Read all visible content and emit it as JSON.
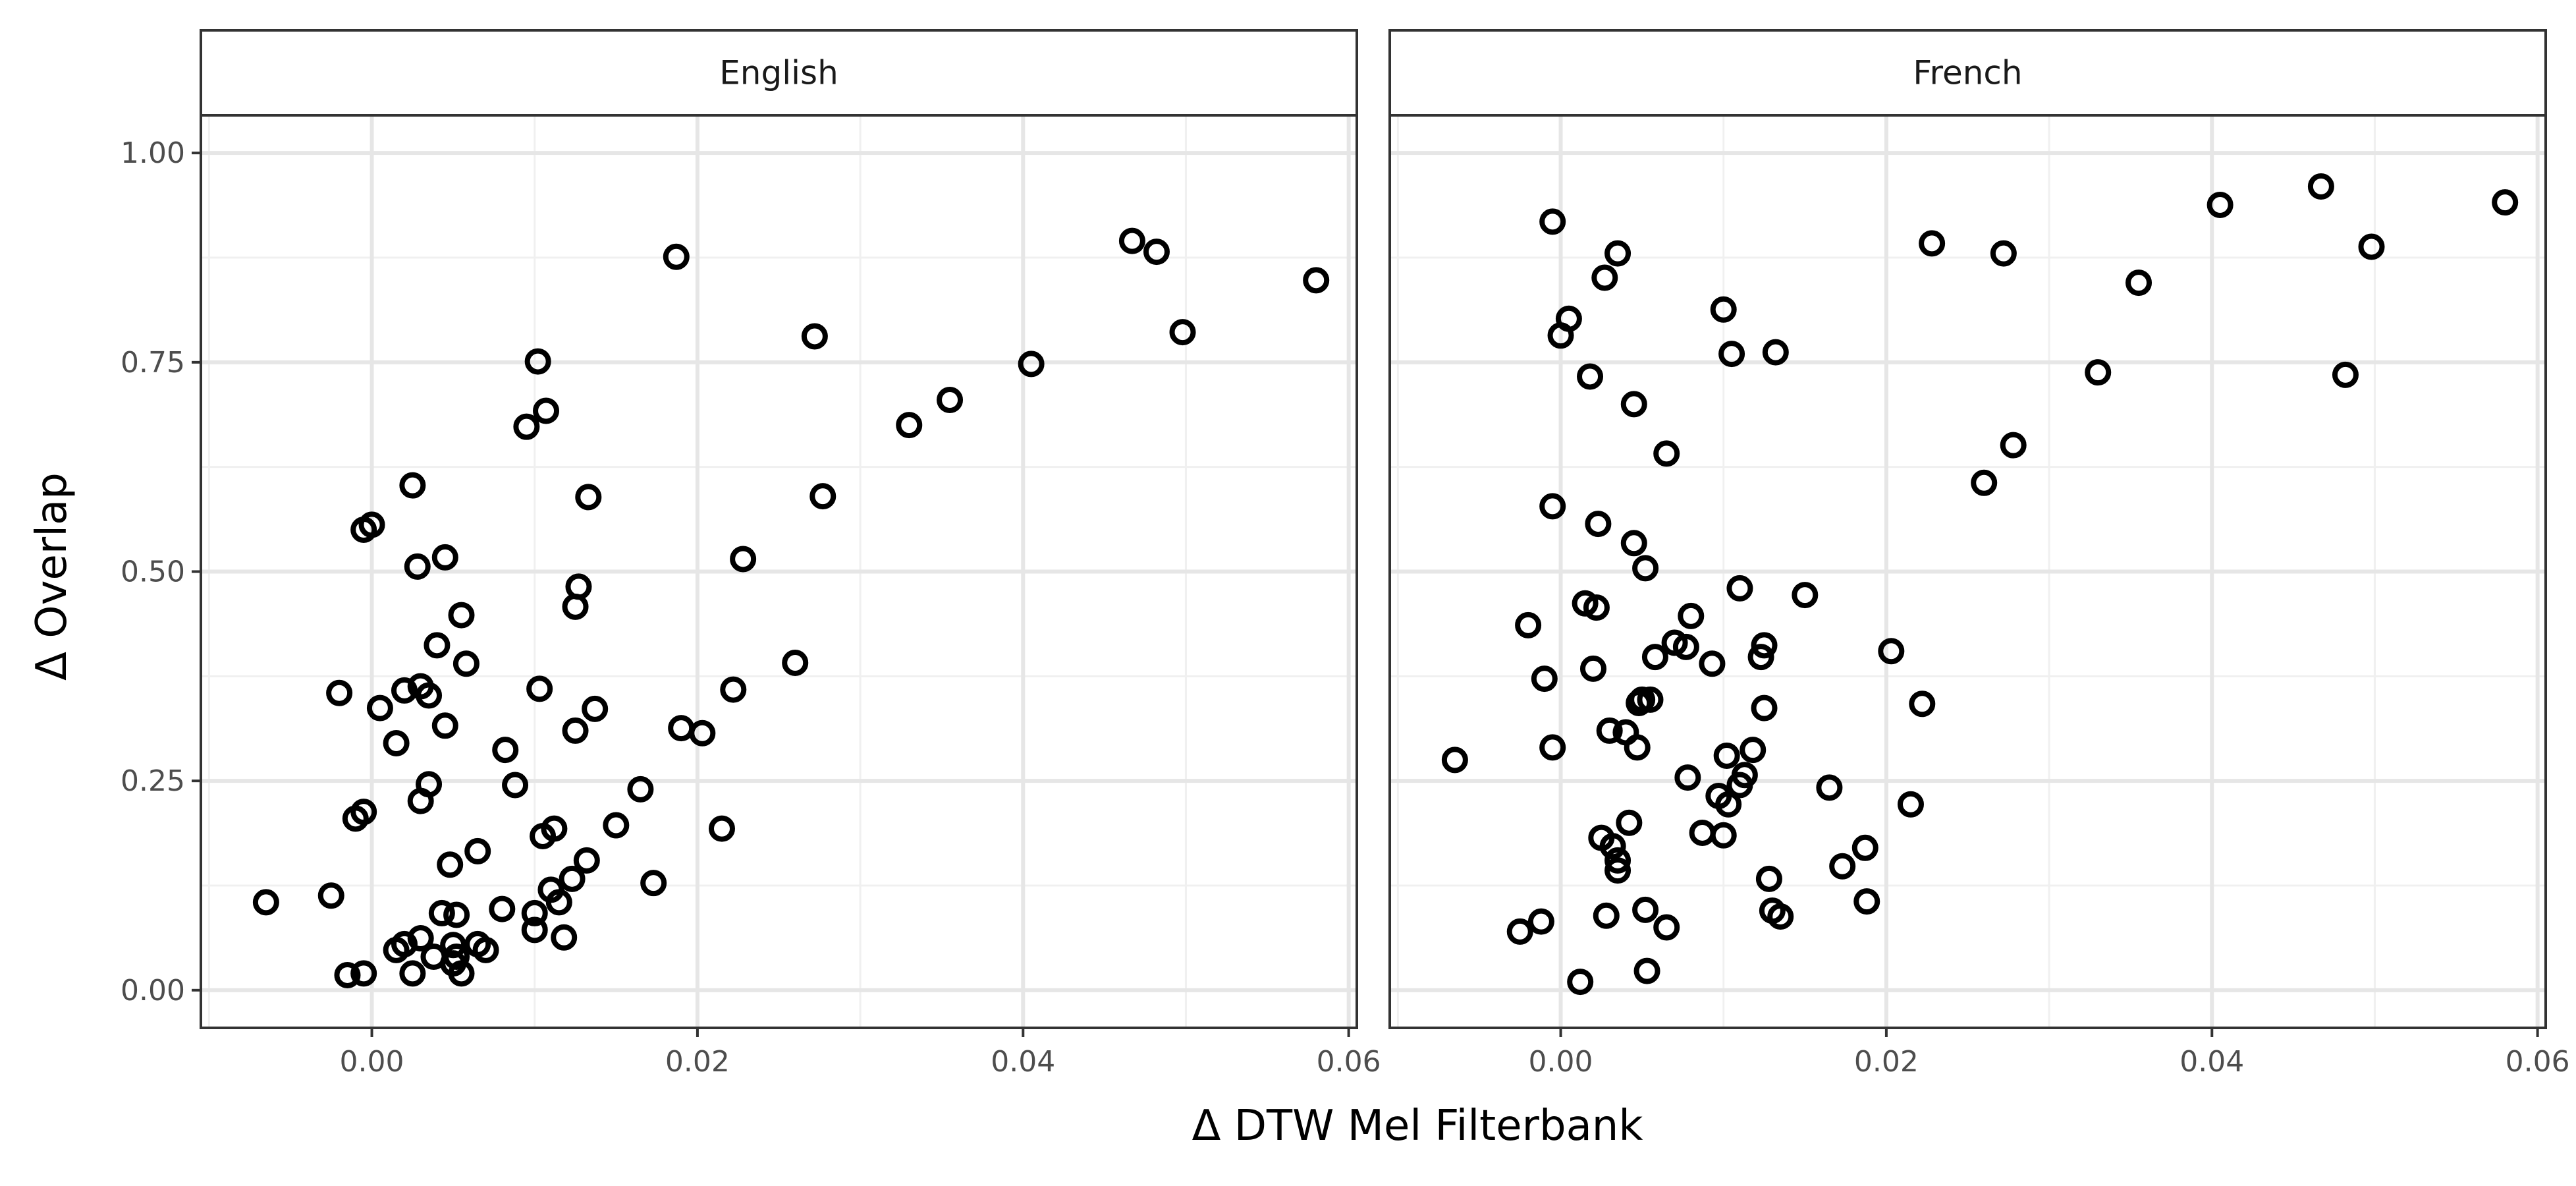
{
  "chart_data": {
    "type": "scatter",
    "xlabel": "Δ DTW Mel Filterbank",
    "ylabel": "Δ Overlap",
    "xlim": [
      -0.0105,
      0.0605
    ],
    "ylim": [
      -0.045,
      1.045
    ],
    "x_ticks": [
      0.0,
      0.02,
      0.04,
      0.06
    ],
    "x_tick_labels": [
      "0.00",
      "0.02",
      "0.04",
      "0.06"
    ],
    "y_ticks": [
      0.0,
      0.25,
      0.5,
      0.75,
      1.0
    ],
    "y_tick_labels": [
      "0.00",
      "0.25",
      "0.50",
      "0.75",
      "1.00"
    ],
    "grid": true,
    "legend": "none",
    "facets": [
      {
        "label": "English",
        "points": [
          [
            -0.0065,
            0.105
          ],
          [
            -0.0025,
            0.113
          ],
          [
            -0.0015,
            0.018
          ],
          [
            -0.0005,
            0.02
          ],
          [
            -0.002,
            0.355
          ],
          [
            -0.001,
            0.205
          ],
          [
            -0.0005,
            0.213
          ],
          [
            -0.0005,
            0.55
          ],
          [
            0.0,
            0.556
          ],
          [
            0.0005,
            0.337
          ],
          [
            0.0015,
            0.048
          ],
          [
            0.0015,
            0.295
          ],
          [
            0.002,
            0.358
          ],
          [
            0.002,
            0.055
          ],
          [
            0.0025,
            0.02
          ],
          [
            0.0025,
            0.603
          ],
          [
            0.0028,
            0.506
          ],
          [
            0.003,
            0.062
          ],
          [
            0.003,
            0.226
          ],
          [
            0.003,
            0.363
          ],
          [
            0.0035,
            0.352
          ],
          [
            0.0035,
            0.246
          ],
          [
            0.0038,
            0.04
          ],
          [
            0.004,
            0.412
          ],
          [
            0.0043,
            0.092
          ],
          [
            0.0045,
            0.316
          ],
          [
            0.0045,
            0.517
          ],
          [
            0.0048,
            0.15
          ],
          [
            0.005,
            0.054
          ],
          [
            0.005,
            0.032
          ],
          [
            0.0052,
            0.04
          ],
          [
            0.0052,
            0.09
          ],
          [
            0.0055,
            0.02
          ],
          [
            0.0055,
            0.448
          ],
          [
            0.0058,
            0.39
          ],
          [
            0.0065,
            0.166
          ],
          [
            0.0065,
            0.055
          ],
          [
            0.007,
            0.048
          ],
          [
            0.008,
            0.097
          ],
          [
            0.0082,
            0.287
          ],
          [
            0.0088,
            0.245
          ],
          [
            0.0095,
            0.673
          ],
          [
            0.01,
            0.072
          ],
          [
            0.01,
            0.092
          ],
          [
            0.0102,
            0.751
          ],
          [
            0.0103,
            0.36
          ],
          [
            0.0105,
            0.184
          ],
          [
            0.0107,
            0.692
          ],
          [
            0.011,
            0.12
          ],
          [
            0.0112,
            0.193
          ],
          [
            0.0115,
            0.105
          ],
          [
            0.0118,
            0.063
          ],
          [
            0.0123,
            0.133
          ],
          [
            0.0125,
            0.31
          ],
          [
            0.0125,
            0.458
          ],
          [
            0.0127,
            0.482
          ],
          [
            0.0132,
            0.155
          ],
          [
            0.0133,
            0.589
          ],
          [
            0.0137,
            0.336
          ],
          [
            0.015,
            0.197
          ],
          [
            0.0165,
            0.24
          ],
          [
            0.0173,
            0.128
          ],
          [
            0.0187,
            0.876
          ],
          [
            0.019,
            0.313
          ],
          [
            0.0203,
            0.307
          ],
          [
            0.0215,
            0.193
          ],
          [
            0.0222,
            0.359
          ],
          [
            0.0228,
            0.515
          ],
          [
            0.026,
            0.391
          ],
          [
            0.0272,
            0.781
          ],
          [
            0.0277,
            0.59
          ],
          [
            0.033,
            0.675
          ],
          [
            0.0355,
            0.705
          ],
          [
            0.0405,
            0.748
          ],
          [
            0.0467,
            0.895
          ],
          [
            0.0482,
            0.882
          ],
          [
            0.0498,
            0.786
          ],
          [
            0.058,
            0.848
          ]
        ]
      },
      {
        "label": "French",
        "points": [
          [
            -0.0065,
            0.275
          ],
          [
            -0.0025,
            0.07
          ],
          [
            -0.002,
            0.436
          ],
          [
            -0.0012,
            0.082
          ],
          [
            -0.001,
            0.372
          ],
          [
            -0.0005,
            0.29
          ],
          [
            -0.0005,
            0.578
          ],
          [
            -0.0005,
            0.918
          ],
          [
            0.0,
            0.782
          ],
          [
            0.0005,
            0.802
          ],
          [
            0.0012,
            0.01
          ],
          [
            0.0015,
            0.462
          ],
          [
            0.0018,
            0.733
          ],
          [
            0.002,
            0.384
          ],
          [
            0.0022,
            0.457
          ],
          [
            0.0023,
            0.557
          ],
          [
            0.0025,
            0.182
          ],
          [
            0.0027,
            0.851
          ],
          [
            0.0028,
            0.089
          ],
          [
            0.003,
            0.31
          ],
          [
            0.0032,
            0.172
          ],
          [
            0.0035,
            0.88
          ],
          [
            0.0035,
            0.155
          ],
          [
            0.0035,
            0.143
          ],
          [
            0.004,
            0.308
          ],
          [
            0.0042,
            0.2
          ],
          [
            0.0045,
            0.7
          ],
          [
            0.0045,
            0.534
          ],
          [
            0.0047,
            0.29
          ],
          [
            0.0048,
            0.343
          ],
          [
            0.005,
            0.347
          ],
          [
            0.0052,
            0.504
          ],
          [
            0.0052,
            0.096
          ],
          [
            0.0053,
            0.023
          ],
          [
            0.0055,
            0.347
          ],
          [
            0.0058,
            0.398
          ],
          [
            0.0065,
            0.075
          ],
          [
            0.0065,
            0.641
          ],
          [
            0.007,
            0.415
          ],
          [
            0.0077,
            0.41
          ],
          [
            0.0078,
            0.254
          ],
          [
            0.008,
            0.447
          ],
          [
            0.0087,
            0.188
          ],
          [
            0.0093,
            0.39
          ],
          [
            0.0097,
            0.232
          ],
          [
            0.01,
            0.185
          ],
          [
            0.01,
            0.813
          ],
          [
            0.0102,
            0.28
          ],
          [
            0.0103,
            0.222
          ],
          [
            0.0105,
            0.76
          ],
          [
            0.011,
            0.48
          ],
          [
            0.011,
            0.245
          ],
          [
            0.0113,
            0.257
          ],
          [
            0.0118,
            0.287
          ],
          [
            0.0123,
            0.398
          ],
          [
            0.0125,
            0.412
          ],
          [
            0.0125,
            0.337
          ],
          [
            0.0128,
            0.133
          ],
          [
            0.013,
            0.095
          ],
          [
            0.0132,
            0.762
          ],
          [
            0.0135,
            0.088
          ],
          [
            0.015,
            0.472
          ],
          [
            0.0165,
            0.242
          ],
          [
            0.0173,
            0.148
          ],
          [
            0.0187,
            0.17
          ],
          [
            0.0188,
            0.106
          ],
          [
            0.0203,
            0.405
          ],
          [
            0.0215,
            0.222
          ],
          [
            0.0222,
            0.342
          ],
          [
            0.0228,
            0.892
          ],
          [
            0.026,
            0.606
          ],
          [
            0.0272,
            0.88
          ],
          [
            0.0278,
            0.651
          ],
          [
            0.033,
            0.738
          ],
          [
            0.0355,
            0.845
          ],
          [
            0.0405,
            0.938
          ],
          [
            0.0467,
            0.96
          ],
          [
            0.0482,
            0.735
          ],
          [
            0.0498,
            0.888
          ],
          [
            0.058,
            0.941
          ]
        ]
      }
    ]
  }
}
